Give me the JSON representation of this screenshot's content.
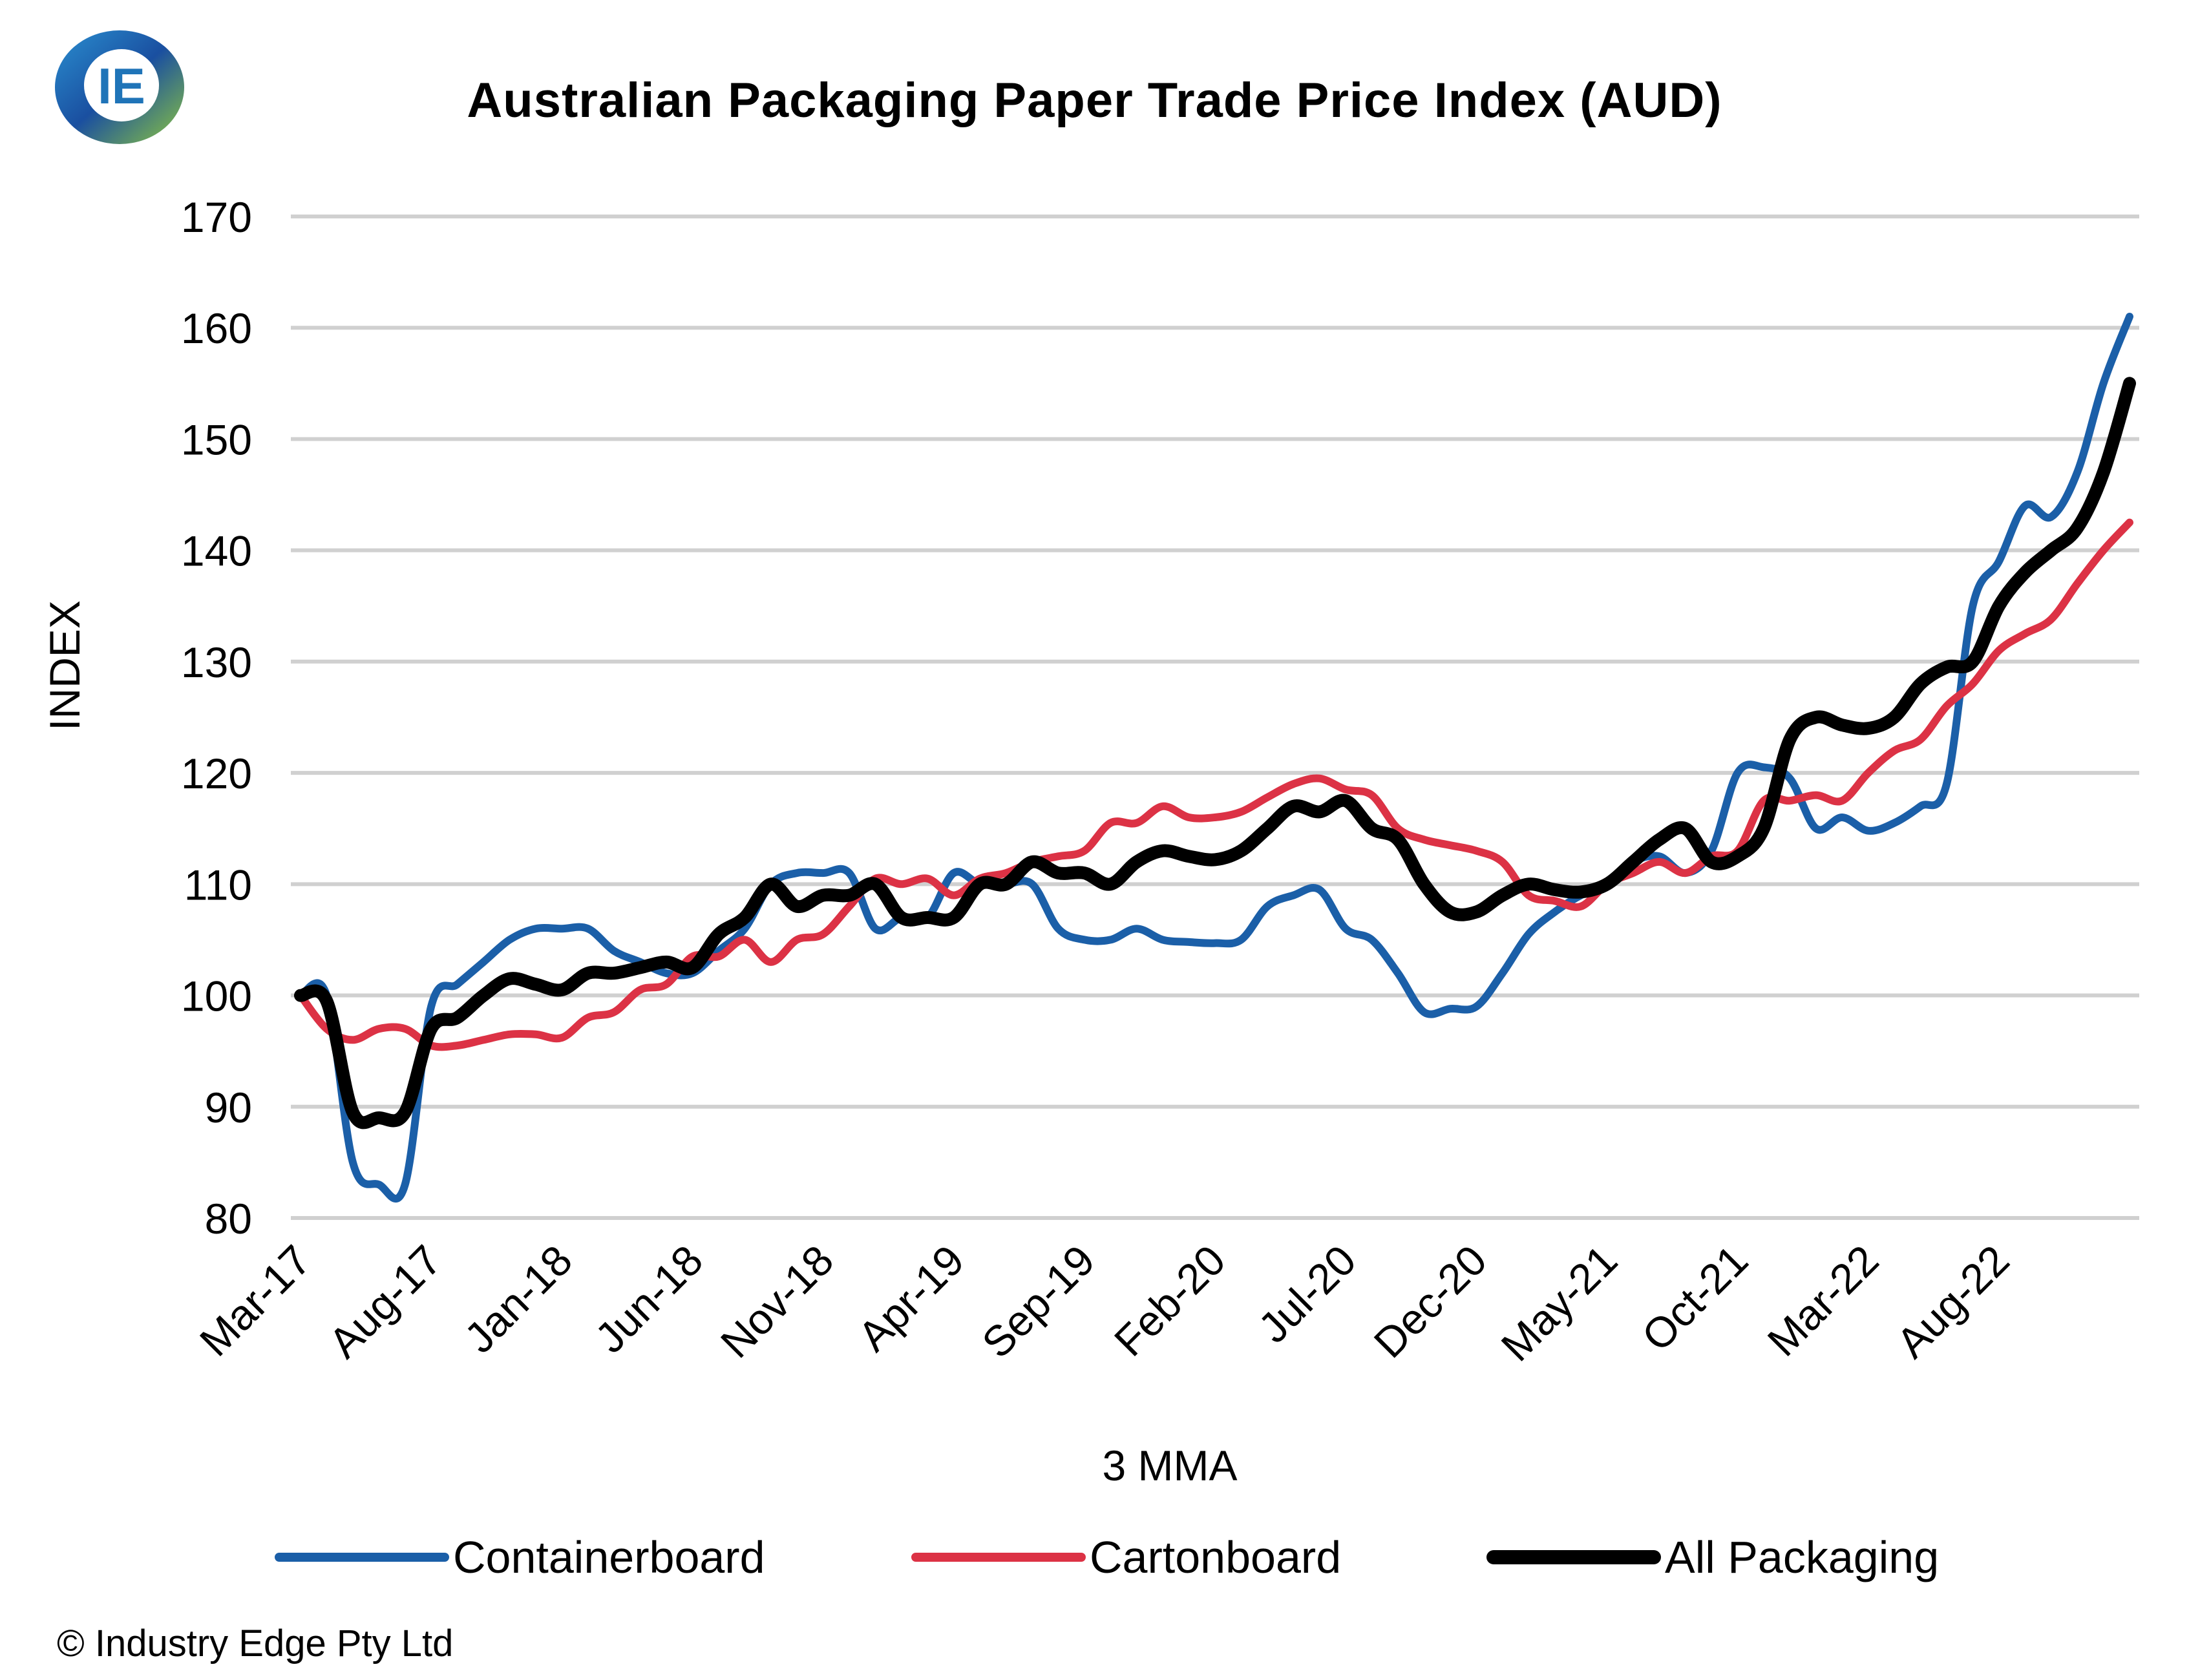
{
  "logo": {
    "text": "IE"
  },
  "copyright": "© Industry Edge Pty Ltd",
  "colors": {
    "Containerboard": "#1b5fa8",
    "Cartonboard": "#dc3245",
    "All Packaging": "#000000",
    "grid": "#d0d0d0"
  },
  "chart_data": {
    "type": "line",
    "title": "Australian Packaging Paper Trade Price Index (AUD)",
    "xlabel": "3 MMA",
    "ylabel": "INDEX",
    "ylim": [
      80,
      170
    ],
    "yticks": [
      80,
      90,
      100,
      110,
      120,
      130,
      140,
      150,
      160,
      170
    ],
    "xticks": [
      "Mar-17",
      "Aug-17",
      "Jan-18",
      "Jun-18",
      "Nov-18",
      "Apr-19",
      "Sep-19",
      "Feb-20",
      "Jul-20",
      "Dec-20",
      "May-21",
      "Oct-21",
      "Mar-22",
      "Aug-22"
    ],
    "grid": "horizontal",
    "legend": "bottom",
    "x": [
      "Mar-17",
      "Apr-17",
      "May-17",
      "Jun-17",
      "Jul-17",
      "Aug-17",
      "Sep-17",
      "Oct-17",
      "Nov-17",
      "Dec-17",
      "Jan-18",
      "Feb-18",
      "Mar-18",
      "Apr-18",
      "May-18",
      "Jun-18",
      "Jul-18",
      "Aug-18",
      "Sep-18",
      "Oct-18",
      "Nov-18",
      "Dec-18",
      "Jan-19",
      "Feb-19",
      "Mar-19",
      "Apr-19",
      "May-19",
      "Jun-19",
      "Jul-19",
      "Aug-19",
      "Sep-19",
      "Oct-19",
      "Nov-19",
      "Dec-19",
      "Jan-20",
      "Feb-20",
      "Mar-20",
      "Apr-20",
      "May-20",
      "Jun-20",
      "Jul-20",
      "Aug-20",
      "Sep-20",
      "Oct-20",
      "Nov-20",
      "Dec-20",
      "Jan-21",
      "Feb-21",
      "Mar-21",
      "Apr-21",
      "May-21",
      "Jun-21",
      "Jul-21",
      "Aug-21",
      "Sep-21",
      "Oct-21",
      "Nov-21",
      "Dec-21",
      "Jan-22",
      "Feb-22",
      "Mar-22",
      "Apr-22",
      "May-22",
      "Jun-22",
      "Jul-22",
      "Aug-22",
      "Sep-22",
      "Oct-22",
      "Nov-22",
      "Dec-22",
      "Jan-23"
    ],
    "series": [
      {
        "name": "Containerboard",
        "values": [
          100,
          100,
          85,
          83,
          83,
          99,
          101,
          103,
          105,
          106,
          106,
          106,
          104,
          103,
          102,
          102,
          104,
          106,
          110,
          111,
          111,
          111,
          106,
          107,
          107,
          111,
          110,
          110,
          110,
          106,
          105,
          105,
          106,
          105,
          104.8,
          104.7,
          105,
          108,
          109,
          109.5,
          106,
          105,
          102,
          98.5,
          98.8,
          99,
          102,
          105.5,
          107.5,
          109,
          110,
          112,
          112.5,
          111,
          113,
          120,
          120.5,
          119.5,
          115,
          116,
          114.8,
          115.5,
          117,
          119,
          135,
          139,
          144,
          143,
          147,
          155,
          161
        ]
      },
      {
        "name": "Cartonboard",
        "values": [
          100,
          97,
          96,
          97,
          97,
          95.5,
          95.5,
          96,
          96.5,
          96.5,
          96.2,
          98,
          98.5,
          100.5,
          101,
          103.5,
          103.5,
          105,
          103,
          105,
          105.5,
          108,
          110.5,
          110,
          110.5,
          109,
          110.5,
          111,
          112,
          112.5,
          113,
          115.5,
          115.5,
          117,
          116,
          116,
          116.5,
          117.8,
          119,
          119.5,
          118.5,
          118,
          115,
          114,
          113.5,
          113,
          112,
          109,
          108.5,
          108,
          110,
          111,
          112,
          111,
          112.5,
          113,
          117.5,
          117.5,
          118,
          117.5,
          120,
          122,
          123,
          126,
          128,
          131,
          132.5,
          133.8,
          137,
          140,
          142.5
        ]
      },
      {
        "name": "All Packaging",
        "values": [
          100,
          99.5,
          89.5,
          89,
          89.5,
          97,
          98,
          100,
          101.5,
          101,
          100.5,
          102,
          102,
          102.5,
          103,
          102.5,
          105.5,
          107,
          110,
          108,
          109,
          109,
          110,
          107,
          107,
          107,
          110,
          110,
          112,
          111,
          111,
          110,
          112,
          113,
          112.5,
          112.2,
          113,
          115,
          117,
          116.5,
          117.5,
          115,
          114,
          110,
          107.5,
          107.5,
          109,
          110,
          109.5,
          109.3,
          110,
          112,
          114,
          115,
          112,
          112.5,
          115,
          123,
          125,
          124.3,
          124,
          125,
          128,
          129.5,
          130,
          135,
          138,
          140,
          142,
          147,
          155
        ]
      }
    ]
  }
}
